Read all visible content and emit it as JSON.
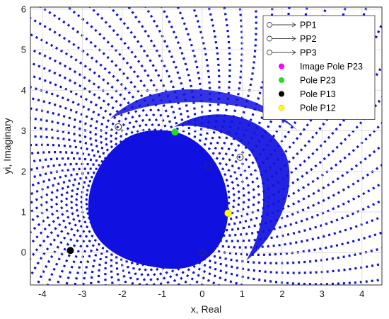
{
  "chart_data": {
    "type": "scatter",
    "xlabel": "x, Real",
    "ylabel": "yi, Imaginary",
    "xlim": [
      -4.3,
      4.5
    ],
    "ylim": [
      -0.8,
      6.05
    ],
    "xticks": [
      -4,
      -3,
      -2,
      -1,
      0,
      1,
      2,
      3,
      4
    ],
    "yticks": [
      0,
      1,
      2,
      3,
      4,
      5,
      6
    ],
    "grid": true,
    "legend_position": "top-right",
    "field_color": "#1010e0",
    "legend": [
      {
        "label": "PP1",
        "marker": "line-circle",
        "color": "#444444"
      },
      {
        "label": "PP2",
        "marker": "line-circle",
        "color": "#444444"
      },
      {
        "label": "PP3",
        "marker": "line-circle",
        "color": "#444444"
      },
      {
        "label": "Image Pole P23",
        "marker": "dot",
        "color": "#ff00ff"
      },
      {
        "label": "Pole P23",
        "marker": "dot",
        "color": "#22dd22"
      },
      {
        "label": "Pole P13",
        "marker": "dot",
        "color": "#000000"
      },
      {
        "label": "Pole P12",
        "marker": "dot",
        "color": "#ffff00"
      }
    ],
    "points": [
      {
        "name": "Pole P23",
        "x": -0.68,
        "y": 2.97,
        "color": "#22dd22"
      },
      {
        "name": "Pole P13",
        "x": -3.3,
        "y": 0.05,
        "color": "#000000"
      },
      {
        "name": "Pole P12",
        "x": 0.65,
        "y": 0.97,
        "color": "#ffff00"
      }
    ],
    "open_markers": [
      {
        "x": -2.1,
        "y": 3.1
      },
      {
        "x": 0.95,
        "y": 2.35
      },
      {
        "x": 0.15,
        "y": 2.12
      },
      {
        "x": 0.0,
        "y": 0.0
      }
    ]
  }
}
